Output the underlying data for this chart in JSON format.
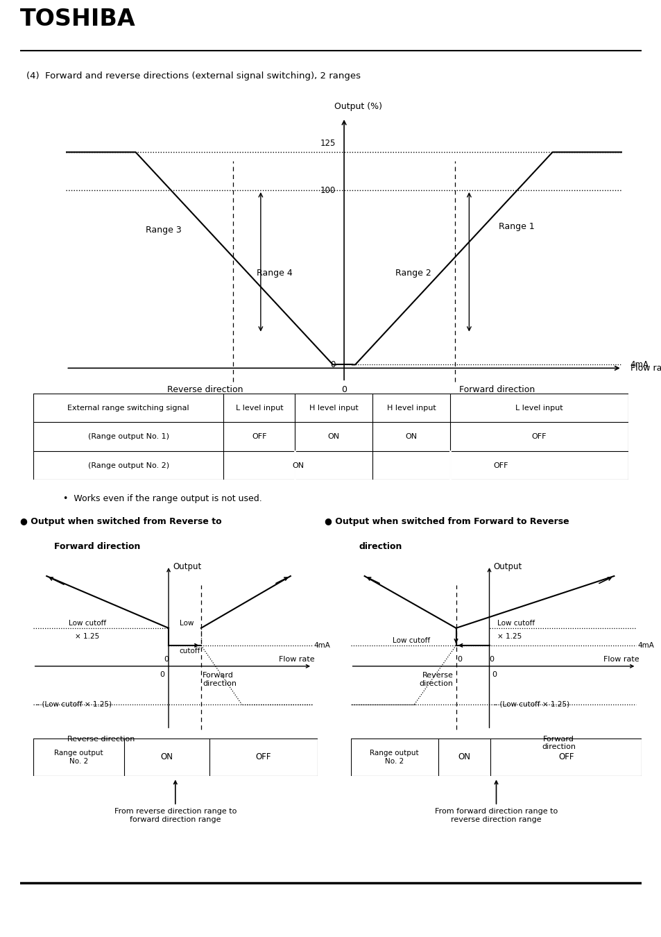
{
  "title": "TOSHIBA",
  "subtitle": "(4)  Forward and reverse directions (external signal switching), 2 ranges",
  "bg_color": "#ffffff",
  "bullet_text": "Works even if the range output is not used.",
  "table_headers": [
    "External range switching signal",
    "L level input",
    "H level input",
    "H level input",
    "L level input"
  ],
  "table_row1_label": "(Range output No. 1)",
  "table_row1_vals": [
    "OFF",
    "ON",
    "ON",
    "OFF"
  ],
  "table_row2_label": "(Range output No. 2)",
  "table_row2_on": "ON",
  "table_row2_off": "OFF",
  "left_title_line1": "Output when switched from Reverse to",
  "left_title_line2": "Forward direction",
  "right_title_line1": "Output when switched from Forward to Reverse",
  "right_title_line2": "direction"
}
